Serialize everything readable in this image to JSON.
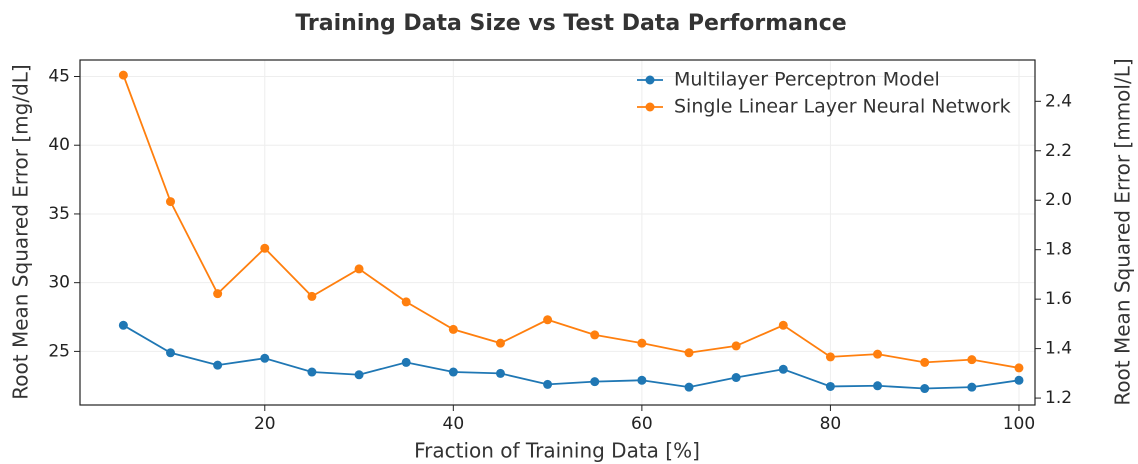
{
  "chart_data": {
    "type": "line",
    "title": "Training Data Size vs Test Data Performance",
    "xlabel": "Fraction of Training Data [%]",
    "ylabel": "Root Mean Squared Error [mg/dL]",
    "y2label": "Root Mean Squared Error [mmol/L]",
    "x": [
      5,
      10,
      15,
      20,
      25,
      30,
      35,
      40,
      45,
      50,
      55,
      60,
      65,
      70,
      75,
      80,
      85,
      90,
      95,
      100
    ],
    "series": [
      {
        "name": "Multilayer Perceptron Model",
        "color": "#1f77b4",
        "values": [
          26.9,
          24.9,
          24.0,
          24.5,
          23.5,
          23.3,
          24.2,
          23.5,
          23.4,
          22.6,
          22.8,
          22.9,
          22.4,
          23.1,
          23.7,
          22.45,
          22.5,
          22.3,
          22.4,
          22.9
        ]
      },
      {
        "name": "Single Linear Layer Neural Network",
        "color": "#ff7f0e",
        "values": [
          45.1,
          35.9,
          29.2,
          32.5,
          29.0,
          31.0,
          28.6,
          26.6,
          25.6,
          27.3,
          26.2,
          25.6,
          24.9,
          25.4,
          26.9,
          24.6,
          24.8,
          24.2,
          24.4,
          23.8
        ]
      }
    ],
    "xlim": [
      0.4,
      101.7
    ],
    "xticks": [
      20,
      40,
      60,
      80,
      100
    ],
    "ylim": [
      21.1,
      46.2
    ],
    "yticks": [
      25,
      30,
      35,
      40,
      45
    ],
    "y2lim": [
      1.172,
      2.567
    ],
    "y2ticks": [
      1.2,
      1.4,
      1.6,
      1.8,
      {
        "value": 2,
        "label": "2.0"
      },
      2.2,
      2.4
    ],
    "grid": true,
    "legend": "upper right"
  }
}
